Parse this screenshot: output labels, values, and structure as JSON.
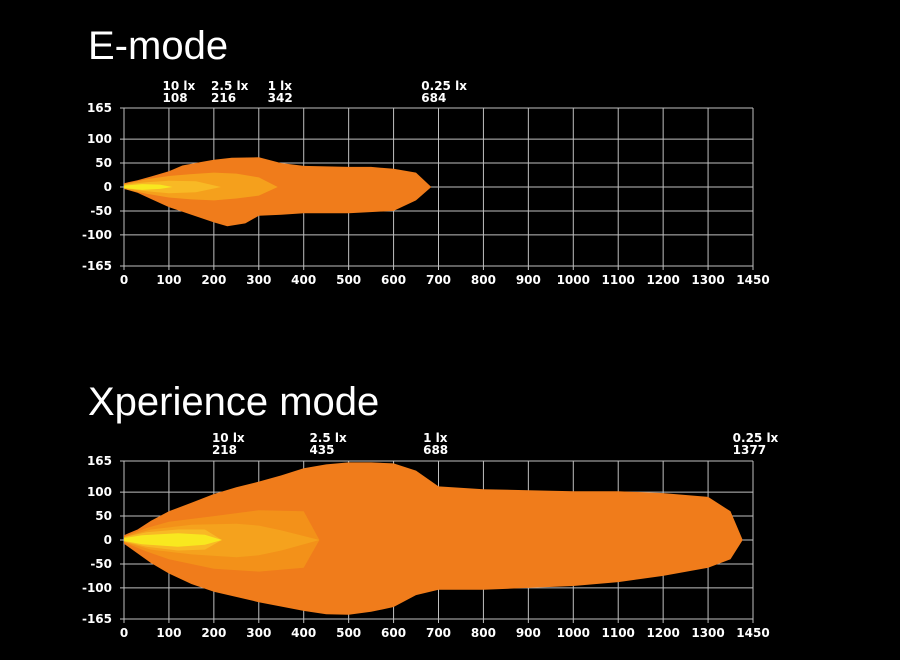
{
  "chart_data": [
    {
      "type": "area",
      "title": "E-mode",
      "x_ticks": [
        "0",
        "100",
        "200",
        "300",
        "400",
        "500",
        "600",
        "700",
        "800",
        "900",
        "1000",
        "1100",
        "1200",
        "1300",
        "1450"
      ],
      "y_ticks": [
        165,
        100,
        50,
        0,
        -50,
        -100,
        -165
      ],
      "ylim": [
        -165,
        165
      ],
      "grid": true,
      "annotations": [
        {
          "lux": "10 lx",
          "distance": "108",
          "x_index": 1.08
        },
        {
          "lux": "2.5 lx",
          "distance": "216",
          "x_index": 2.16
        },
        {
          "lux": "1 lx",
          "distance": "342",
          "x_index": 3.42
        },
        {
          "lux": "0.25 lx",
          "distance": "684",
          "x_index": 6.84
        }
      ],
      "series": [
        {
          "color": "#f07c1b",
          "points": [
            [
              0,
              8
            ],
            [
              0.3,
              14
            ],
            [
              0.6,
              22
            ],
            [
              1,
              33
            ],
            [
              1.3,
              45
            ],
            [
              1.7,
              52
            ],
            [
              2,
              57
            ],
            [
              2.4,
              61
            ],
            [
              3,
              62
            ],
            [
              3.5,
              50
            ],
            [
              4,
              44
            ],
            [
              5,
              42
            ],
            [
              5.5,
              42
            ],
            [
              6,
              38
            ],
            [
              6.5,
              30
            ],
            [
              6.84,
              0
            ],
            [
              6.5,
              -28
            ],
            [
              6,
              -50
            ],
            [
              5,
              -55
            ],
            [
              4,
              -55
            ],
            [
              3.5,
              -58
            ],
            [
              3,
              -60
            ],
            [
              2.7,
              -76
            ],
            [
              2.3,
              -82
            ],
            [
              2,
              -74
            ],
            [
              1.5,
              -58
            ],
            [
              1,
              -42
            ],
            [
              0.6,
              -25
            ],
            [
              0.3,
              -12
            ],
            [
              0,
              -4
            ]
          ]
        },
        {
          "color": "#f5a01c",
          "points": [
            [
              0,
              6
            ],
            [
              0.5,
              16
            ],
            [
              1,
              23
            ],
            [
              1.5,
              27
            ],
            [
              2,
              30
            ],
            [
              2.5,
              28
            ],
            [
              3,
              20
            ],
            [
              3.42,
              0
            ],
            [
              3,
              -18
            ],
            [
              2.5,
              -24
            ],
            [
              2,
              -28
            ],
            [
              1.5,
              -26
            ],
            [
              1,
              -22
            ],
            [
              0.5,
              -14
            ],
            [
              0,
              -4
            ]
          ]
        },
        {
          "color": "#f8b925",
          "points": [
            [
              0,
              5
            ],
            [
              0.5,
              10
            ],
            [
              1,
              13
            ],
            [
              1.6,
              12
            ],
            [
              2.16,
              0
            ],
            [
              1.6,
              -11
            ],
            [
              1,
              -13
            ],
            [
              0.5,
              -9
            ],
            [
              0,
              -3
            ]
          ]
        },
        {
          "color": "#f8e81f",
          "points": [
            [
              0,
              3
            ],
            [
              0.4,
              6
            ],
            [
              0.8,
              5
            ],
            [
              1.08,
              0
            ],
            [
              0.8,
              -4
            ],
            [
              0.4,
              -6
            ],
            [
              0,
              -2
            ]
          ]
        }
      ]
    },
    {
      "type": "area",
      "title": "Xperience mode",
      "x_ticks": [
        "0",
        "100",
        "200",
        "300",
        "400",
        "500",
        "600",
        "700",
        "800",
        "900",
        "1000",
        "1100",
        "1200",
        "1300",
        "1450"
      ],
      "y_ticks": [
        165,
        100,
        50,
        0,
        -50,
        -100,
        -165
      ],
      "ylim": [
        -165,
        165
      ],
      "grid": true,
      "annotations": [
        {
          "lux": "10 lx",
          "distance": "218",
          "x_index": 2.18
        },
        {
          "lux": "2.5 lx",
          "distance": "435",
          "x_index": 4.35
        },
        {
          "lux": "1 lx",
          "distance": "688",
          "x_index": 6.88
        },
        {
          "lux": "0.25 lx",
          "distance": "1377",
          "x_index": 13.77
        }
      ],
      "series": [
        {
          "color": "#f07c1b",
          "points": [
            [
              0,
              10
            ],
            [
              0.3,
              22
            ],
            [
              0.6,
              40
            ],
            [
              1,
              60
            ],
            [
              1.5,
              78
            ],
            [
              2,
              96
            ],
            [
              2.5,
              110
            ],
            [
              3,
              122
            ],
            [
              3.5,
              135
            ],
            [
              4,
              150
            ],
            [
              4.5,
              158
            ],
            [
              5,
              162
            ],
            [
              5.5,
              162
            ],
            [
              6,
              160
            ],
            [
              6.5,
              145
            ],
            [
              7,
              112
            ],
            [
              8,
              106
            ],
            [
              9,
              104
            ],
            [
              10,
              102
            ],
            [
              11,
              102
            ],
            [
              12,
              98
            ],
            [
              13,
              90
            ],
            [
              13.5,
              60
            ],
            [
              13.77,
              0
            ],
            [
              13.5,
              -40
            ],
            [
              13,
              -58
            ],
            [
              12,
              -75
            ],
            [
              11,
              -88
            ],
            [
              10,
              -96
            ],
            [
              9,
              -100
            ],
            [
              8,
              -104
            ],
            [
              7,
              -104
            ],
            [
              6.5,
              -115
            ],
            [
              6,
              -140
            ],
            [
              5.5,
              -150
            ],
            [
              5,
              -156
            ],
            [
              4.5,
              -155
            ],
            [
              4,
              -148
            ],
            [
              3,
              -130
            ],
            [
              2,
              -108
            ],
            [
              1.5,
              -92
            ],
            [
              1,
              -70
            ],
            [
              0.6,
              -48
            ],
            [
              0.3,
              -28
            ],
            [
              0,
              -8
            ]
          ]
        },
        {
          "color": "#f39119",
          "points": [
            [
              0,
              7
            ],
            [
              0.5,
              25
            ],
            [
              1,
              38
            ],
            [
              2,
              50
            ],
            [
              3,
              62
            ],
            [
              4,
              60
            ],
            [
              4.35,
              0
            ],
            [
              4,
              -58
            ],
            [
              3,
              -66
            ],
            [
              2,
              -60
            ],
            [
              1,
              -40
            ],
            [
              0.5,
              -24
            ],
            [
              0,
              -5
            ]
          ]
        },
        {
          "color": "#f5a21d",
          "points": [
            [
              0,
              6
            ],
            [
              0.6,
              22
            ],
            [
              1.5,
              32
            ],
            [
              2.5,
              34
            ],
            [
              3,
              30
            ],
            [
              3.5,
              20
            ],
            [
              4.35,
              0
            ],
            [
              3.5,
              -22
            ],
            [
              3,
              -32
            ],
            [
              2.5,
              -36
            ],
            [
              1.5,
              -30
            ],
            [
              0.6,
              -20
            ],
            [
              0,
              -4
            ]
          ]
        },
        {
          "color": "#f8b925",
          "points": [
            [
              0,
              6
            ],
            [
              0.5,
              16
            ],
            [
              1.2,
              22
            ],
            [
              1.8,
              22
            ],
            [
              2.18,
              0
            ],
            [
              1.8,
              -20
            ],
            [
              1.2,
              -22
            ],
            [
              0.5,
              -14
            ],
            [
              0,
              -3
            ]
          ]
        },
        {
          "color": "#f8e81f",
          "points": [
            [
              0,
              4
            ],
            [
              0.4,
              10
            ],
            [
              1.2,
              14
            ],
            [
              1.8,
              11
            ],
            [
              2.18,
              0
            ],
            [
              1.8,
              -10
            ],
            [
              1.2,
              -14
            ],
            [
              0.4,
              -9
            ],
            [
              0,
              -2
            ]
          ]
        }
      ]
    }
  ]
}
